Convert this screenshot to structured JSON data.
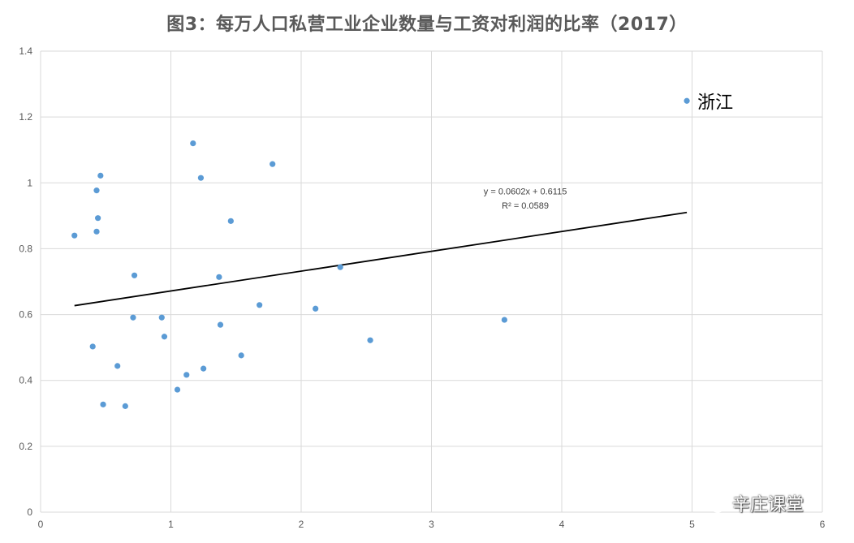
{
  "chart_data": {
    "type": "scatter",
    "title": "图3：每万人口私营工业企业数量与工资对利润的比率（2017）",
    "xlabel": "",
    "ylabel": "",
    "xlim": [
      0,
      6
    ],
    "ylim": [
      0,
      1.4
    ],
    "xticks": [
      0,
      1,
      2,
      3,
      4,
      5,
      6
    ],
    "yticks": [
      0,
      0.2,
      0.4,
      0.6,
      0.8,
      1,
      1.2,
      1.4
    ],
    "grid": true,
    "marker_color": "#5B9BD5",
    "series": [
      {
        "points": [
          {
            "x": 0.26,
            "y": 0.84
          },
          {
            "x": 0.4,
            "y": 0.503
          },
          {
            "x": 0.43,
            "y": 0.977
          },
          {
            "x": 0.43,
            "y": 0.852
          },
          {
            "x": 0.44,
            "y": 0.893
          },
          {
            "x": 0.46,
            "y": 1.022
          },
          {
            "x": 0.48,
            "y": 0.327
          },
          {
            "x": 0.59,
            "y": 0.444
          },
          {
            "x": 0.65,
            "y": 0.322
          },
          {
            "x": 0.71,
            "y": 0.591
          },
          {
            "x": 0.72,
            "y": 0.719
          },
          {
            "x": 0.93,
            "y": 0.591
          },
          {
            "x": 0.95,
            "y": 0.533
          },
          {
            "x": 1.05,
            "y": 0.372
          },
          {
            "x": 1.12,
            "y": 0.417
          },
          {
            "x": 1.17,
            "y": 1.12
          },
          {
            "x": 1.23,
            "y": 1.015
          },
          {
            "x": 1.25,
            "y": 0.436
          },
          {
            "x": 1.37,
            "y": 0.714
          },
          {
            "x": 1.38,
            "y": 0.569
          },
          {
            "x": 1.46,
            "y": 0.884
          },
          {
            "x": 1.54,
            "y": 0.476
          },
          {
            "x": 1.68,
            "y": 0.629
          },
          {
            "x": 1.78,
            "y": 1.057
          },
          {
            "x": 2.11,
            "y": 0.618
          },
          {
            "x": 2.3,
            "y": 0.744
          },
          {
            "x": 2.53,
            "y": 0.522
          },
          {
            "x": 3.56,
            "y": 0.584
          },
          {
            "x": 4.96,
            "y": 1.249
          }
        ]
      }
    ],
    "highlight": {
      "x": 4.96,
      "y": 1.249,
      "label": "浙江"
    },
    "trendline": {
      "slope": 0.0602,
      "intercept": 0.6115,
      "x_range": [
        0.26,
        4.96
      ],
      "equation": "y = 0.0602x + 0.6115",
      "r_squared": "R² = 0.0589"
    }
  },
  "watermark": {
    "text": "辛庄课堂",
    "icon": "wechat-icon"
  }
}
